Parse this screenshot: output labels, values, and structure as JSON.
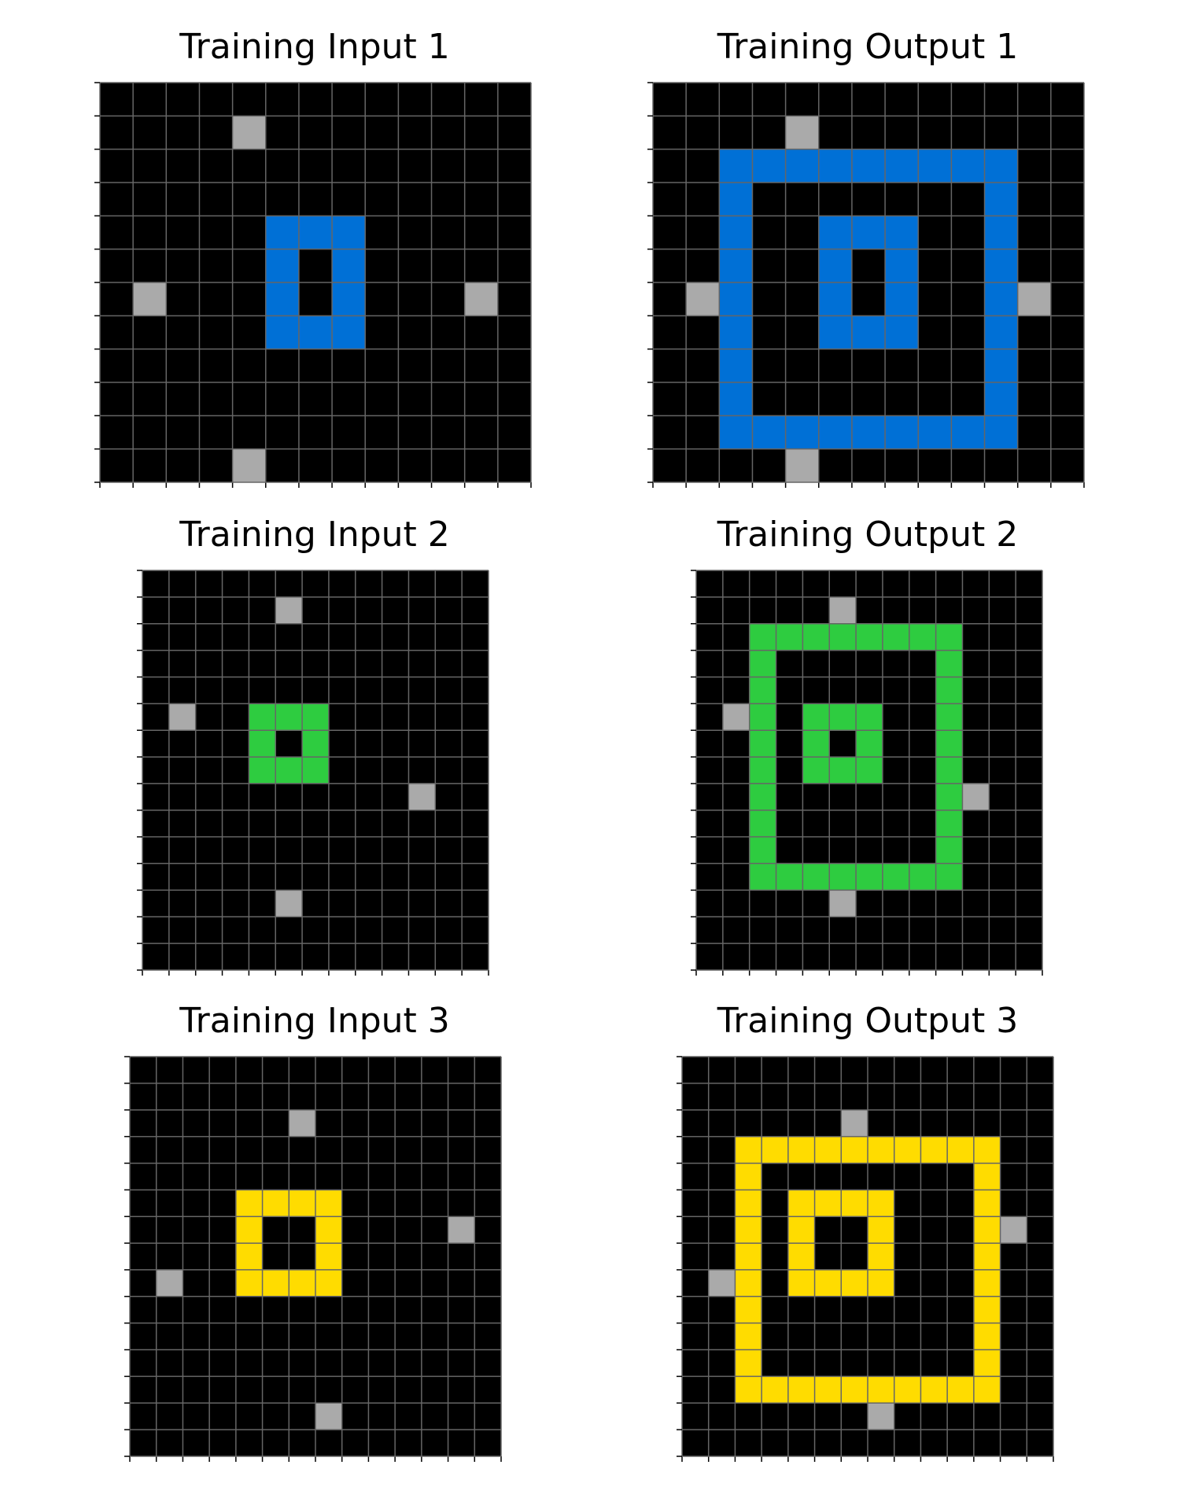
{
  "colors": {
    "background": "#000000",
    "gridline": "#666666",
    "blue": "#0070d6",
    "green": "#2ecc40",
    "yellow": "#ffdc00",
    "gray": "#aaaaaa"
  },
  "panels": [
    {
      "title": "Training Input 1",
      "rows": 12,
      "cols": 13,
      "cells": [
        [
          "gray",
          1,
          4
        ],
        [
          "gray",
          6,
          1
        ],
        [
          "gray",
          6,
          11
        ],
        [
          "gray",
          11,
          4
        ],
        [
          "blue",
          4,
          5
        ],
        [
          "blue",
          4,
          6
        ],
        [
          "blue",
          4,
          7
        ],
        [
          "blue",
          5,
          5
        ],
        [
          "blue",
          5,
          7
        ],
        [
          "blue",
          6,
          5
        ],
        [
          "blue",
          6,
          7
        ],
        [
          "blue",
          7,
          5
        ],
        [
          "blue",
          7,
          6
        ],
        [
          "blue",
          7,
          7
        ]
      ]
    },
    {
      "title": "Training Output 1",
      "rows": 12,
      "cols": 13,
      "cells": [
        [
          "gray",
          1,
          4
        ],
        [
          "gray",
          6,
          1
        ],
        [
          "gray",
          6,
          11
        ],
        [
          "gray",
          11,
          4
        ],
        [
          "blue",
          4,
          5
        ],
        [
          "blue",
          4,
          6
        ],
        [
          "blue",
          4,
          7
        ],
        [
          "blue",
          5,
          5
        ],
        [
          "blue",
          5,
          7
        ],
        [
          "blue",
          6,
          5
        ],
        [
          "blue",
          6,
          7
        ],
        [
          "blue",
          7,
          5
        ],
        [
          "blue",
          7,
          6
        ],
        [
          "blue",
          7,
          7
        ],
        [
          "blue",
          2,
          2
        ],
        [
          "blue",
          2,
          3
        ],
        [
          "blue",
          2,
          4
        ],
        [
          "blue",
          2,
          5
        ],
        [
          "blue",
          2,
          6
        ],
        [
          "blue",
          2,
          7
        ],
        [
          "blue",
          2,
          8
        ],
        [
          "blue",
          2,
          9
        ],
        [
          "blue",
          2,
          10
        ],
        [
          "blue",
          10,
          2
        ],
        [
          "blue",
          10,
          3
        ],
        [
          "blue",
          10,
          4
        ],
        [
          "blue",
          10,
          5
        ],
        [
          "blue",
          10,
          6
        ],
        [
          "blue",
          10,
          7
        ],
        [
          "blue",
          10,
          8
        ],
        [
          "blue",
          10,
          9
        ],
        [
          "blue",
          10,
          10
        ],
        [
          "blue",
          3,
          2
        ],
        [
          "blue",
          4,
          2
        ],
        [
          "blue",
          5,
          2
        ],
        [
          "blue",
          6,
          2
        ],
        [
          "blue",
          7,
          2
        ],
        [
          "blue",
          8,
          2
        ],
        [
          "blue",
          9,
          2
        ],
        [
          "blue",
          3,
          10
        ],
        [
          "blue",
          4,
          10
        ],
        [
          "blue",
          5,
          10
        ],
        [
          "blue",
          6,
          10
        ],
        [
          "blue",
          7,
          10
        ],
        [
          "blue",
          8,
          10
        ],
        [
          "blue",
          9,
          10
        ]
      ]
    },
    {
      "title": "Training Input 2",
      "rows": 15,
      "cols": 13,
      "cells": [
        [
          "gray",
          1,
          5
        ],
        [
          "gray",
          5,
          1
        ],
        [
          "gray",
          8,
          10
        ],
        [
          "gray",
          12,
          5
        ],
        [
          "green",
          5,
          4
        ],
        [
          "green",
          5,
          5
        ],
        [
          "green",
          5,
          6
        ],
        [
          "green",
          6,
          4
        ],
        [
          "green",
          6,
          6
        ],
        [
          "green",
          7,
          4
        ],
        [
          "green",
          7,
          5
        ],
        [
          "green",
          7,
          6
        ]
      ]
    },
    {
      "title": "Training Output 2",
      "rows": 15,
      "cols": 13,
      "cells": [
        [
          "gray",
          1,
          5
        ],
        [
          "gray",
          5,
          1
        ],
        [
          "gray",
          8,
          10
        ],
        [
          "gray",
          12,
          5
        ],
        [
          "green",
          5,
          4
        ],
        [
          "green",
          5,
          5
        ],
        [
          "green",
          5,
          6
        ],
        [
          "green",
          6,
          4
        ],
        [
          "green",
          6,
          6
        ],
        [
          "green",
          7,
          4
        ],
        [
          "green",
          7,
          5
        ],
        [
          "green",
          7,
          6
        ],
        [
          "green",
          2,
          2
        ],
        [
          "green",
          2,
          3
        ],
        [
          "green",
          2,
          4
        ],
        [
          "green",
          2,
          5
        ],
        [
          "green",
          2,
          6
        ],
        [
          "green",
          2,
          7
        ],
        [
          "green",
          2,
          8
        ],
        [
          "green",
          2,
          9
        ],
        [
          "green",
          11,
          2
        ],
        [
          "green",
          11,
          3
        ],
        [
          "green",
          11,
          4
        ],
        [
          "green",
          11,
          5
        ],
        [
          "green",
          11,
          6
        ],
        [
          "green",
          11,
          7
        ],
        [
          "green",
          11,
          8
        ],
        [
          "green",
          11,
          9
        ],
        [
          "green",
          3,
          2
        ],
        [
          "green",
          4,
          2
        ],
        [
          "green",
          5,
          2
        ],
        [
          "green",
          6,
          2
        ],
        [
          "green",
          7,
          2
        ],
        [
          "green",
          8,
          2
        ],
        [
          "green",
          9,
          2
        ],
        [
          "green",
          10,
          2
        ],
        [
          "green",
          3,
          9
        ],
        [
          "green",
          4,
          9
        ],
        [
          "green",
          5,
          9
        ],
        [
          "green",
          6,
          9
        ],
        [
          "green",
          7,
          9
        ],
        [
          "green",
          8,
          9
        ],
        [
          "green",
          9,
          9
        ],
        [
          "green",
          10,
          9
        ]
      ]
    },
    {
      "title": "Training Input 3",
      "rows": 15,
      "cols": 14,
      "cells": [
        [
          "gray",
          2,
          6
        ],
        [
          "gray",
          6,
          12
        ],
        [
          "gray",
          8,
          1
        ],
        [
          "gray",
          13,
          7
        ],
        [
          "yellow",
          5,
          4
        ],
        [
          "yellow",
          5,
          5
        ],
        [
          "yellow",
          5,
          6
        ],
        [
          "yellow",
          5,
          7
        ],
        [
          "yellow",
          6,
          4
        ],
        [
          "yellow",
          6,
          7
        ],
        [
          "yellow",
          7,
          4
        ],
        [
          "yellow",
          7,
          7
        ],
        [
          "yellow",
          8,
          4
        ],
        [
          "yellow",
          8,
          5
        ],
        [
          "yellow",
          8,
          6
        ],
        [
          "yellow",
          8,
          7
        ]
      ]
    },
    {
      "title": "Training Output 3",
      "rows": 15,
      "cols": 14,
      "cells": [
        [
          "gray",
          2,
          6
        ],
        [
          "gray",
          6,
          12
        ],
        [
          "gray",
          8,
          1
        ],
        [
          "gray",
          13,
          7
        ],
        [
          "yellow",
          5,
          4
        ],
        [
          "yellow",
          5,
          5
        ],
        [
          "yellow",
          5,
          6
        ],
        [
          "yellow",
          5,
          7
        ],
        [
          "yellow",
          6,
          4
        ],
        [
          "yellow",
          6,
          7
        ],
        [
          "yellow",
          7,
          4
        ],
        [
          "yellow",
          7,
          7
        ],
        [
          "yellow",
          8,
          4
        ],
        [
          "yellow",
          8,
          5
        ],
        [
          "yellow",
          8,
          6
        ],
        [
          "yellow",
          8,
          7
        ],
        [
          "yellow",
          3,
          2
        ],
        [
          "yellow",
          3,
          3
        ],
        [
          "yellow",
          3,
          4
        ],
        [
          "yellow",
          3,
          5
        ],
        [
          "yellow",
          3,
          6
        ],
        [
          "yellow",
          3,
          7
        ],
        [
          "yellow",
          3,
          8
        ],
        [
          "yellow",
          3,
          9
        ],
        [
          "yellow",
          3,
          10
        ],
        [
          "yellow",
          3,
          11
        ],
        [
          "yellow",
          12,
          2
        ],
        [
          "yellow",
          12,
          3
        ],
        [
          "yellow",
          12,
          4
        ],
        [
          "yellow",
          12,
          5
        ],
        [
          "yellow",
          12,
          6
        ],
        [
          "yellow",
          12,
          7
        ],
        [
          "yellow",
          12,
          8
        ],
        [
          "yellow",
          12,
          9
        ],
        [
          "yellow",
          12,
          10
        ],
        [
          "yellow",
          12,
          11
        ],
        [
          "yellow",
          4,
          2
        ],
        [
          "yellow",
          5,
          2
        ],
        [
          "yellow",
          6,
          2
        ],
        [
          "yellow",
          7,
          2
        ],
        [
          "yellow",
          8,
          2
        ],
        [
          "yellow",
          9,
          2
        ],
        [
          "yellow",
          10,
          2
        ],
        [
          "yellow",
          11,
          2
        ],
        [
          "yellow",
          4,
          11
        ],
        [
          "yellow",
          5,
          11
        ],
        [
          "yellow",
          6,
          11
        ],
        [
          "yellow",
          7,
          11
        ],
        [
          "yellow",
          8,
          11
        ],
        [
          "yellow",
          9,
          11
        ],
        [
          "yellow",
          10,
          11
        ],
        [
          "yellow",
          11,
          11
        ]
      ]
    }
  ]
}
